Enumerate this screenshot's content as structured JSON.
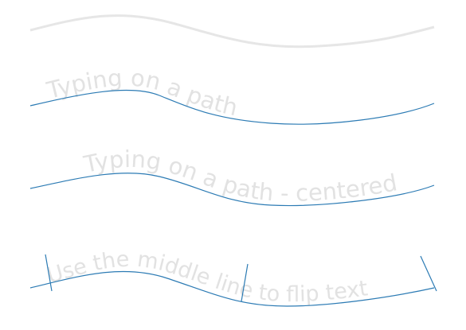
{
  "labels": [
    "Typing on a path",
    "Typing on a path - centered",
    "Use the middle line to flip text"
  ]
}
